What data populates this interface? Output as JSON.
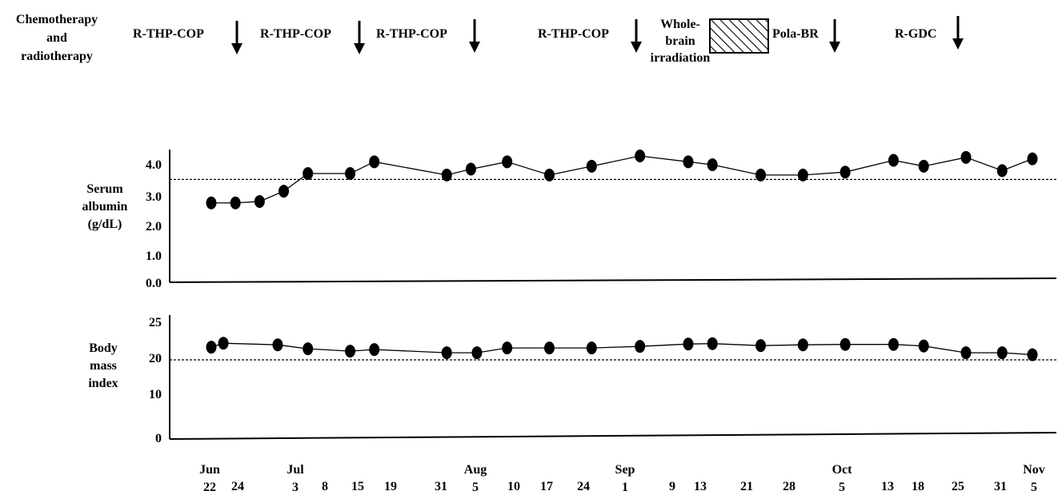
{
  "header": {
    "row_label_lines": [
      "Chemotherapy",
      "and",
      "radiotherapy"
    ],
    "regimens": [
      {
        "label": "R-THP-COP"
      },
      {
        "label": "R-THP-COP"
      },
      {
        "label": "R-THP-COP"
      },
      {
        "label": "R-THP-COP"
      },
      {
        "label_lines": [
          "Whole-",
          "brain",
          "irradiation"
        ]
      },
      {
        "label": "Pola-BR"
      },
      {
        "label": "R-GDC"
      }
    ]
  },
  "x_axis": {
    "labels": [
      {
        "month": "Jun",
        "day": "22"
      },
      {
        "month": "",
        "day": "24"
      },
      {
        "month": "Jul",
        "day": "3"
      },
      {
        "month": "",
        "day": "8"
      },
      {
        "month": "",
        "day": "15"
      },
      {
        "month": "",
        "day": "19"
      },
      {
        "month": "",
        "day": "31"
      },
      {
        "month": "Aug",
        "day": "5"
      },
      {
        "month": "",
        "day": "10"
      },
      {
        "month": "",
        "day": "17"
      },
      {
        "month": "",
        "day": "24"
      },
      {
        "month": "Sep",
        "day": "1"
      },
      {
        "month": "",
        "day": "9"
      },
      {
        "month": "",
        "day": "13"
      },
      {
        "month": "",
        "day": "21"
      },
      {
        "month": "",
        "day": "28"
      },
      {
        "month": "Oct",
        "day": "5"
      },
      {
        "month": "",
        "day": "13"
      },
      {
        "month": "",
        "day": "18"
      },
      {
        "month": "",
        "day": "25"
      },
      {
        "month": "",
        "day": "31"
      },
      {
        "month": "Nov",
        "day": "5"
      }
    ]
  },
  "chart_data": [
    {
      "type": "line",
      "ylabel_lines": [
        "Serum",
        "albumin",
        "(g/dL)"
      ],
      "yticks": [
        "4.0",
        "3.0",
        "2.0",
        "1.0",
        "0.0"
      ],
      "ylim": [
        0,
        4.5
      ],
      "reference_line": 3.5,
      "points": [
        {
          "x": "Jun 22",
          "y": 2.7
        },
        {
          "x": "Jun 26",
          "y": 2.7
        },
        {
          "x": "Jun 30",
          "y": 2.75
        },
        {
          "x": "Jul 4",
          "y": 3.1
        },
        {
          "x": "Jul 8",
          "y": 3.7
        },
        {
          "x": "Jul 15",
          "y": 3.7
        },
        {
          "x": "Jul 19",
          "y": 4.1
        },
        {
          "x": "Jul 31",
          "y": 3.65
        },
        {
          "x": "Aug 4",
          "y": 3.85
        },
        {
          "x": "Aug 10",
          "y": 4.1
        },
        {
          "x": "Aug 17",
          "y": 3.65
        },
        {
          "x": "Aug 24",
          "y": 3.95
        },
        {
          "x": "Sep 1",
          "y": 4.3
        },
        {
          "x": "Sep 9",
          "y": 4.1
        },
        {
          "x": "Sep 13",
          "y": 4.0
        },
        {
          "x": "Sep 21",
          "y": 3.65
        },
        {
          "x": "Sep 28",
          "y": 3.65
        },
        {
          "x": "Oct 5",
          "y": 3.75
        },
        {
          "x": "Oct 13",
          "y": 4.15
        },
        {
          "x": "Oct 18",
          "y": 3.95
        },
        {
          "x": "Oct 25",
          "y": 4.25
        },
        {
          "x": "Oct 31",
          "y": 3.8
        },
        {
          "x": "Nov 5",
          "y": 4.2
        }
      ]
    },
    {
      "type": "line",
      "ylabel_lines": [
        "Body",
        "mass",
        "index"
      ],
      "yticks": [
        "25",
        "20",
        "10",
        "0"
      ],
      "ylim": [
        0,
        26
      ],
      "reference_line": 20,
      "points": [
        {
          "x": "Jun 22",
          "y": 23.2
        },
        {
          "x": "Jun 24",
          "y": 24.2
        },
        {
          "x": "Jul 3",
          "y": 23.8
        },
        {
          "x": "Jul 8",
          "y": 22.8
        },
        {
          "x": "Jul 15",
          "y": 22.2
        },
        {
          "x": "Jul 19",
          "y": 22.6
        },
        {
          "x": "Jul 31",
          "y": 21.8
        },
        {
          "x": "Aug 5",
          "y": 21.8
        },
        {
          "x": "Aug 10",
          "y": 23.0
        },
        {
          "x": "Aug 17",
          "y": 23.0
        },
        {
          "x": "Aug 24",
          "y": 23.0
        },
        {
          "x": "Sep 1",
          "y": 23.4
        },
        {
          "x": "Sep 9",
          "y": 24.0
        },
        {
          "x": "Sep 13",
          "y": 24.1
        },
        {
          "x": "Sep 21",
          "y": 23.6
        },
        {
          "x": "Sep 28",
          "y": 23.8
        },
        {
          "x": "Oct 5",
          "y": 23.9
        },
        {
          "x": "Oct 13",
          "y": 23.9
        },
        {
          "x": "Oct 18",
          "y": 23.5
        },
        {
          "x": "Oct 25",
          "y": 21.8
        },
        {
          "x": "Oct 31",
          "y": 21.8
        },
        {
          "x": "Nov 5",
          "y": 21.3
        }
      ]
    }
  ]
}
